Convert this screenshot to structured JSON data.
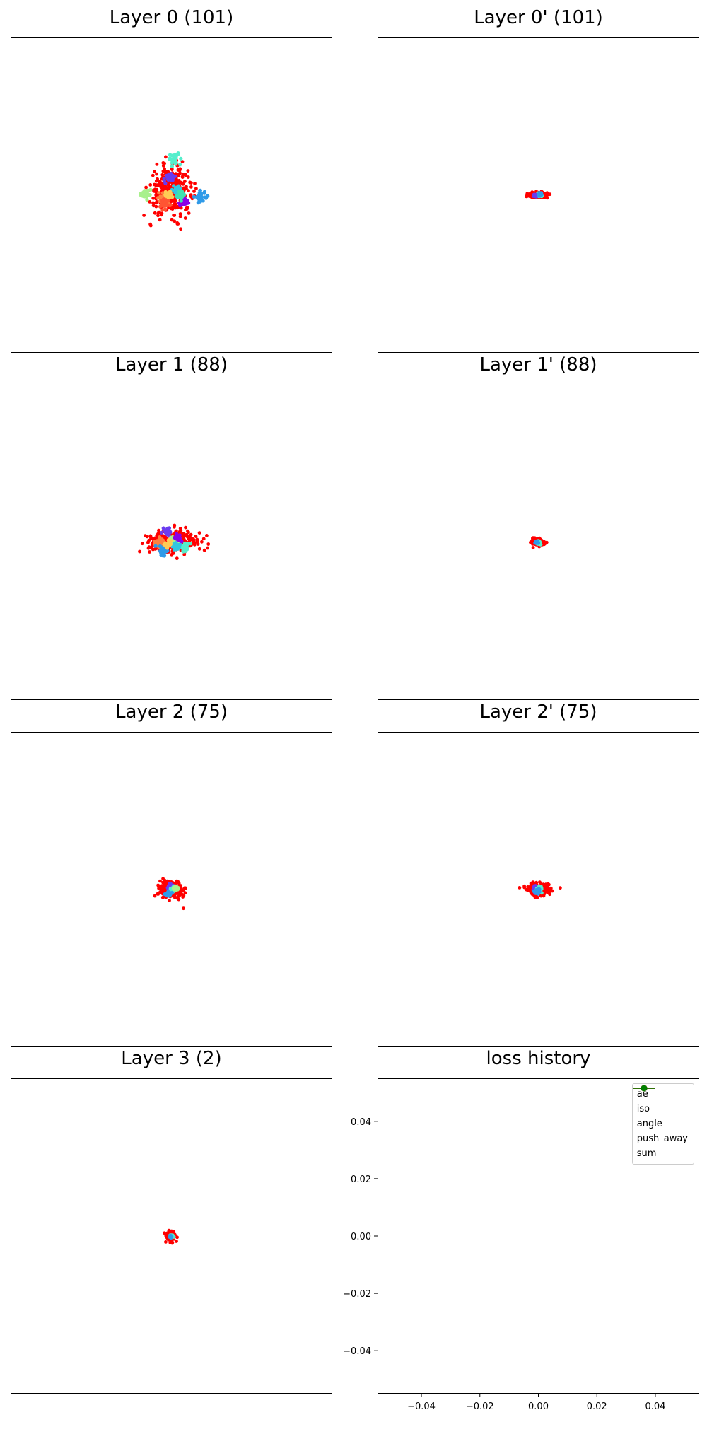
{
  "figure": {
    "background": "#ffffff"
  },
  "chart_data": [
    {
      "type": "scatter",
      "title": "Layer 0 (101)",
      "xlabel": "",
      "ylabel": "",
      "axes_ticks": false,
      "xlim": [
        -10,
        10
      ],
      "ylim": [
        -10,
        10
      ],
      "outlier_color": "#ff0000",
      "outlier_center": [
        0.0,
        0.3
      ],
      "outlier_spread": [
        1.1,
        1.3
      ],
      "outlier_count": 340,
      "clusters": [
        {
          "color": "#55eecc",
          "center": [
            0.2,
            2.3
          ],
          "spread": 0.3
        },
        {
          "color": "#6a3cf0",
          "center": [
            -0.1,
            1.1
          ],
          "spread": 0.25
        },
        {
          "color": "#a8f08c",
          "center": [
            -1.6,
            0.1
          ],
          "spread": 0.25
        },
        {
          "color": "#2f9ae8",
          "center": [
            1.8,
            -0.1
          ],
          "spread": 0.3
        },
        {
          "color": "#8a00e6",
          "center": [
            0.8,
            -0.4
          ],
          "spread": 0.25
        },
        {
          "color": "#ff8040",
          "center": [
            -0.5,
            -0.1
          ],
          "spread": 0.35
        },
        {
          "color": "#ff5533",
          "center": [
            -0.4,
            -0.5
          ],
          "spread": 0.3
        },
        {
          "color": "#33c6e0",
          "center": [
            0.3,
            0.3
          ],
          "spread": 0.25
        },
        {
          "color": "#ffcc55",
          "center": [
            -0.2,
            0.0
          ],
          "spread": 0.2
        },
        {
          "color": "#40e0b0",
          "center": [
            0.6,
            0.0
          ],
          "spread": 0.2
        }
      ]
    },
    {
      "type": "scatter",
      "title": "Layer 0' (101)",
      "xlabel": "",
      "ylabel": "",
      "axes_ticks": false,
      "xlim": [
        -10,
        10
      ],
      "ylim": [
        -10,
        10
      ],
      "outlier_color": "#ff0000",
      "outlier_center": [
        0.0,
        0.0
      ],
      "outlier_spread": [
        0.5,
        0.15
      ],
      "outlier_count": 180,
      "clusters": [
        {
          "color": "#55eecc",
          "center": [
            0.05,
            0.0
          ],
          "spread": 0.12
        },
        {
          "color": "#6a3cf0",
          "center": [
            -0.2,
            0.0
          ],
          "spread": 0.08
        },
        {
          "color": "#2f9ae8",
          "center": [
            0.1,
            0.05
          ],
          "spread": 0.08
        }
      ]
    },
    {
      "type": "scatter",
      "title": "Layer 1 (88)",
      "xlabel": "",
      "ylabel": "",
      "axes_ticks": false,
      "xlim": [
        -10,
        10
      ],
      "ylim": [
        -10,
        10
      ],
      "outlier_color": "#ff0000",
      "outlier_center": [
        0.0,
        0.0
      ],
      "outlier_spread": [
        1.3,
        0.6
      ],
      "outlier_count": 320,
      "clusters": [
        {
          "color": "#6a3cf0",
          "center": [
            -0.3,
            0.7
          ],
          "spread": 0.25
        },
        {
          "color": "#a8f08c",
          "center": [
            0.2,
            0.1
          ],
          "spread": 0.25
        },
        {
          "color": "#ff8040",
          "center": [
            -0.8,
            0.0
          ],
          "spread": 0.25
        },
        {
          "color": "#2f9ae8",
          "center": [
            -0.5,
            -0.5
          ],
          "spread": 0.25
        },
        {
          "color": "#55eecc",
          "center": [
            0.8,
            -0.3
          ],
          "spread": 0.25
        },
        {
          "color": "#33c6e0",
          "center": [
            0.3,
            -0.2
          ],
          "spread": 0.2
        },
        {
          "color": "#ffcc55",
          "center": [
            -0.2,
            -0.1
          ],
          "spread": 0.2
        },
        {
          "color": "#8a00e6",
          "center": [
            0.4,
            0.3
          ],
          "spread": 0.2
        }
      ]
    },
    {
      "type": "scatter",
      "title": "Layer 1' (88)",
      "xlabel": "",
      "ylabel": "",
      "axes_ticks": false,
      "xlim": [
        -10,
        10
      ],
      "ylim": [
        -10,
        10
      ],
      "outlier_color": "#ff0000",
      "outlier_center": [
        0.0,
        0.0
      ],
      "outlier_spread": [
        0.3,
        0.18
      ],
      "outlier_count": 150,
      "clusters": [
        {
          "color": "#55eecc",
          "center": [
            0.0,
            0.0
          ],
          "spread": 0.1
        },
        {
          "color": "#2f9ae8",
          "center": [
            -0.1,
            0.0
          ],
          "spread": 0.07
        }
      ]
    },
    {
      "type": "scatter",
      "title": "Layer 2 (75)",
      "xlabel": "",
      "ylabel": "",
      "axes_ticks": false,
      "xlim": [
        -10,
        10
      ],
      "ylim": [
        -10,
        10
      ],
      "outlier_color": "#ff0000",
      "outlier_center": [
        0.0,
        0.0
      ],
      "outlier_spread": [
        0.65,
        0.45
      ],
      "outlier_count": 240,
      "clusters": [
        {
          "color": "#6a3cf0",
          "center": [
            -0.1,
            0.2
          ],
          "spread": 0.15
        },
        {
          "color": "#55eecc",
          "center": [
            0.1,
            0.0
          ],
          "spread": 0.15
        },
        {
          "color": "#2f9ae8",
          "center": [
            -0.2,
            -0.3
          ],
          "spread": 0.15
        },
        {
          "color": "#a8f08c",
          "center": [
            0.3,
            0.1
          ],
          "spread": 0.12
        }
      ]
    },
    {
      "type": "scatter",
      "title": "Layer 2' (75)",
      "xlabel": "",
      "ylabel": "",
      "axes_ticks": false,
      "xlim": [
        -10,
        10
      ],
      "ylim": [
        -10,
        10
      ],
      "outlier_color": "#ff0000",
      "outlier_center": [
        0.0,
        0.0
      ],
      "outlier_spread": [
        0.6,
        0.3
      ],
      "outlier_count": 220,
      "clusters": [
        {
          "color": "#6a3cf0",
          "center": [
            -0.2,
            0.1
          ],
          "spread": 0.15
        },
        {
          "color": "#55eecc",
          "center": [
            0.1,
            0.0
          ],
          "spread": 0.15
        },
        {
          "color": "#2f9ae8",
          "center": [
            -0.1,
            -0.1
          ],
          "spread": 0.12
        }
      ]
    },
    {
      "type": "scatter",
      "title": "Layer 3 (2)",
      "xlabel": "",
      "ylabel": "",
      "axes_ticks": false,
      "xlim": [
        -10,
        10
      ],
      "ylim": [
        -10,
        10
      ],
      "outlier_color": "#ff0000",
      "outlier_center": [
        0.0,
        0.0
      ],
      "outlier_spread": [
        0.22,
        0.28
      ],
      "outlier_count": 120,
      "clusters": [
        {
          "color": "#55eecc",
          "center": [
            0.0,
            0.0
          ],
          "spread": 0.07
        },
        {
          "color": "#2f9ae8",
          "center": [
            -0.05,
            -0.05
          ],
          "spread": 0.05
        }
      ]
    },
    {
      "type": "line",
      "title": "loss history",
      "xlabel": "",
      "ylabel": "",
      "xlim": [
        -0.055,
        0.055
      ],
      "ylim": [
        -0.055,
        0.055
      ],
      "xticks": [
        "−0.04",
        "−0.02",
        "0.00",
        "0.02",
        "0.04"
      ],
      "xtick_values": [
        -0.04,
        -0.02,
        0.0,
        0.02,
        0.04
      ],
      "yticks": [
        "0.04",
        "0.02",
        "0.00",
        "−0.02",
        "−0.04"
      ],
      "ytick_values": [
        0.04,
        0.02,
        0.0,
        -0.02,
        -0.04
      ],
      "legend_position": "top-right",
      "series": [
        {
          "name": "ae",
          "color": "#0000ff",
          "values": []
        },
        {
          "name": "iso",
          "color": "#000000",
          "values": []
        },
        {
          "name": "angle",
          "color": "#bfbf00",
          "values": []
        },
        {
          "name": "push_away",
          "color": "#ff0000",
          "values": []
        },
        {
          "name": "sum",
          "color": "#008000",
          "values": []
        }
      ]
    }
  ]
}
